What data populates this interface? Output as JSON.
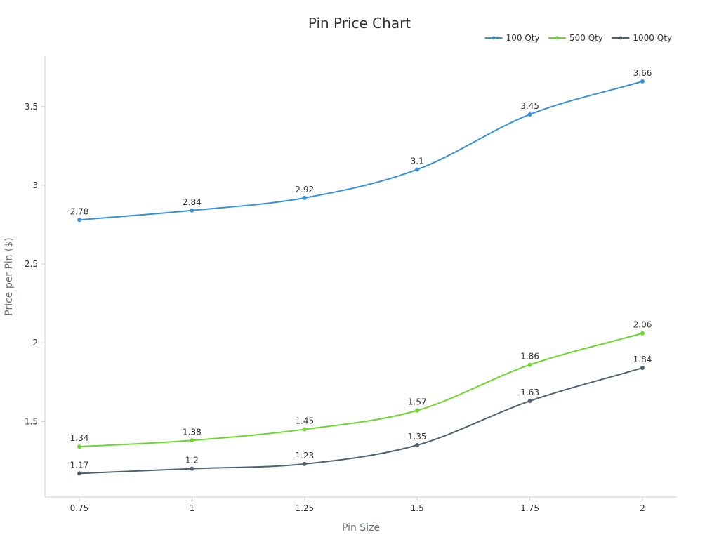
{
  "chart_data": {
    "type": "line",
    "title": "Pin Price Chart",
    "xlabel": "Pin Size",
    "ylabel": "Price per Pin ($)",
    "x": [
      0.75,
      1,
      1.25,
      1.5,
      1.75,
      2
    ],
    "x_tick_labels": [
      "0.75",
      "1",
      "1.25",
      "1.5",
      "1.75",
      "2"
    ],
    "y_ticks": [
      1.5,
      2,
      2.5,
      3,
      3.5
    ],
    "y_tick_labels": [
      "1.5",
      "2",
      "2.5",
      "3",
      "3.5"
    ],
    "ylim": [
      1.02,
      3.82
    ],
    "smooth": true,
    "grid": false,
    "legend_position": "top-right",
    "series": [
      {
        "name": "100 Qty",
        "color": "#3591dc",
        "values": [
          2.78,
          2.84,
          2.92,
          3.1,
          3.45,
          3.66
        ],
        "labels": [
          "2.78",
          "2.84",
          "2.92",
          "3.1",
          "3.45",
          "3.66"
        ]
      },
      {
        "name": "500 Qty",
        "color": "#6dd62e",
        "values": [
          1.34,
          1.38,
          1.45,
          1.57,
          1.86,
          2.06
        ],
        "labels": [
          "1.34",
          "1.38",
          "1.45",
          "1.57",
          "1.86",
          "2.06"
        ]
      },
      {
        "name": "1000 Qty",
        "color": "#4e6371",
        "values": [
          1.17,
          1.2,
          1.23,
          1.35,
          1.63,
          1.84
        ],
        "labels": [
          "1.17",
          "1.2",
          "1.23",
          "1.35",
          "1.63",
          "1.84"
        ]
      }
    ]
  }
}
